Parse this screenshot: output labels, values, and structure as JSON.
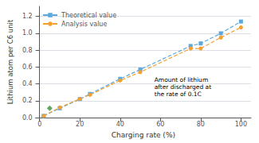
{
  "chart_data": {
    "type": "line",
    "x": [
      2,
      10,
      20,
      25,
      40,
      50,
      75,
      80,
      90,
      100
    ],
    "series": [
      {
        "name": "Theoretical value",
        "color": "#5ba8dc",
        "marker": "square",
        "line_style": "dashed",
        "values": [
          0.02,
          0.11,
          0.22,
          0.28,
          0.46,
          0.57,
          0.85,
          0.88,
          1.0,
          1.14
        ]
      },
      {
        "name": "Analysis value",
        "color": "#f4a030",
        "marker": "circle",
        "line_style": "dashed",
        "values": [
          0.02,
          0.12,
          0.22,
          0.27,
          0.44,
          0.54,
          0.82,
          0.82,
          0.95,
          1.07
        ]
      },
      {
        "type": "scatter",
        "color": "#3a8c3a",
        "marker": "diamond",
        "x": [
          5
        ],
        "values": [
          0.11
        ]
      }
    ],
    "annotations": [
      {
        "text": "Amount of lithium\nafter discharged at\nthe rate of 0.1C",
        "x": 57,
        "y": 0.49
      }
    ],
    "xlabel": "Charging rate (%)",
    "ylabel": "Lithium atom per C6 unit",
    "xlim": [
      -2,
      105
    ],
    "ylim": [
      0,
      1.32
    ],
    "xticks": [
      0,
      20,
      40,
      60,
      80,
      100
    ],
    "yticks": [
      {
        "value": 0,
        "label": "0.0"
      },
      0.2,
      0.4,
      0.6,
      0.8,
      {
        "value": 1,
        "label": "1.0"
      },
      1.2
    ],
    "grid": true,
    "legend": "upper left",
    "background_color": "#ffffff"
  }
}
